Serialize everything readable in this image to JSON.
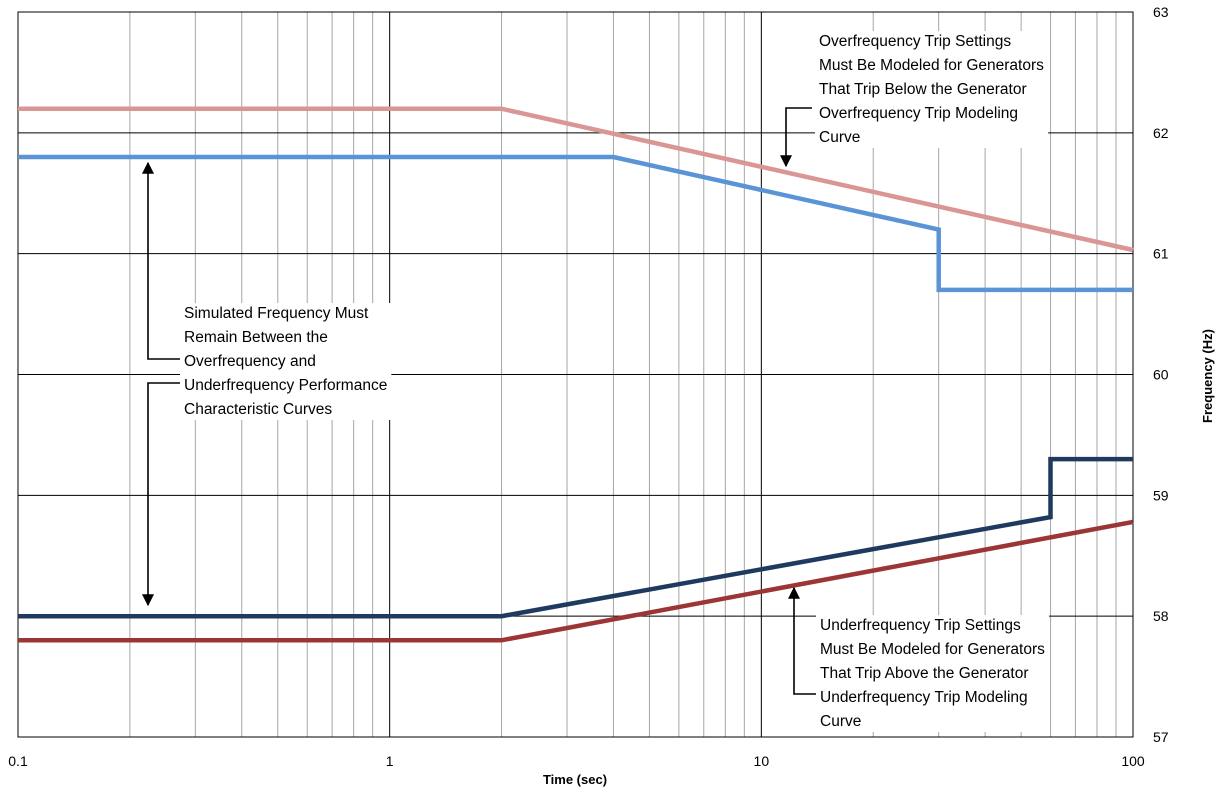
{
  "chart_data": {
    "type": "line",
    "xlabel": "Time (sec)",
    "ylabel": "Frequency (Hz)",
    "x_scale": "log",
    "xlim": [
      0.1,
      100
    ],
    "ylim": [
      57,
      63
    ],
    "x_ticks": [
      0.1,
      1,
      10,
      100
    ],
    "x_tick_labels": [
      "0.1",
      "1",
      "10",
      "100"
    ],
    "y_ticks": [
      57,
      58,
      59,
      60,
      61,
      62,
      63
    ],
    "y_tick_labels": [
      "57",
      "58",
      "59",
      "60",
      "61",
      "62",
      "63"
    ],
    "y_axis_side": "right",
    "grid": true,
    "legend": "none",
    "series": [
      {
        "color": "#d99694",
        "points": [
          [
            0.1,
            62.2
          ],
          [
            2,
            62.2
          ],
          [
            100,
            61.03
          ]
        ]
      },
      {
        "color": "#5b94d6",
        "points": [
          [
            0.1,
            61.8
          ],
          [
            4,
            61.8
          ],
          [
            30,
            61.2
          ],
          [
            30,
            60.7
          ],
          [
            100,
            60.7
          ]
        ]
      },
      {
        "color": "#1f3a5e",
        "points": [
          [
            0.1,
            58.0
          ],
          [
            2,
            58.0
          ],
          [
            60,
            58.82
          ],
          [
            60,
            59.3
          ],
          [
            100,
            59.3
          ]
        ]
      },
      {
        "color": "#9c3535",
        "points": [
          [
            0.1,
            57.8
          ],
          [
            2,
            57.8
          ],
          [
            100,
            58.78
          ]
        ]
      }
    ],
    "annotations": [
      {
        "id": "overfrequency",
        "lines": [
          "Overfrequency Trip Settings",
          "Must Be Modeled for Generators",
          "That Trip Below the Generator",
          "Overfrequency Trip Modeling",
          "Curve"
        ]
      },
      {
        "id": "simulated",
        "lines": [
          "Simulated Frequency Must",
          "Remain Between the",
          "Overfrequency and",
          "Underfrequency Performance",
          "Characteristic Curves"
        ]
      },
      {
        "id": "underfrequency",
        "lines": [
          "Underfrequency Trip Settings",
          "Must Be Modeled for Generators",
          "That Trip Above the Generator",
          "Underfrequency Trip Modeling",
          "Curve"
        ]
      }
    ]
  }
}
